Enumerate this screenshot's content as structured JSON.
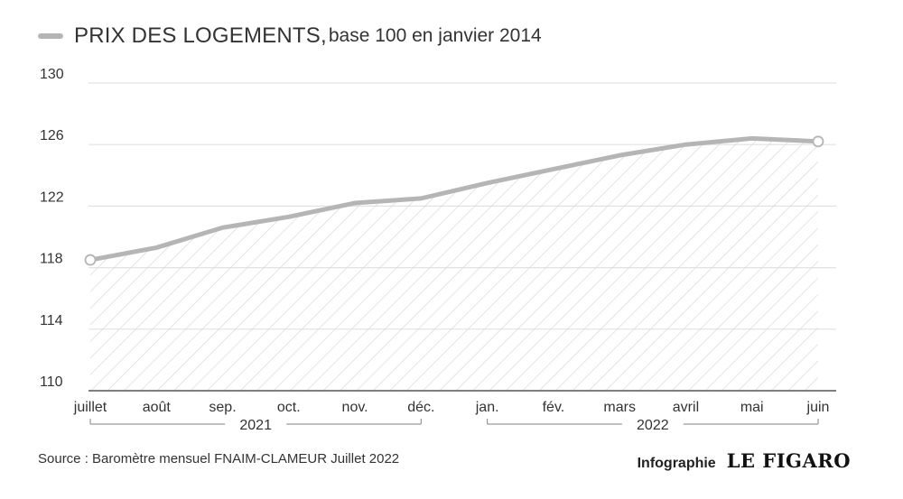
{
  "legend": {
    "title": "PRIX DES LOGEMENTS,",
    "subtitle": "base 100 en janvier 2014",
    "color": "#b5b5b5"
  },
  "footer": {
    "source": "Source : Baromètre mensuel FNAIM-CLAMEUR Juillet 2022",
    "credit_label": "Infographie",
    "credit_logo": "LE FIGARO"
  },
  "chart_data": {
    "type": "area",
    "categories": [
      "juillet",
      "août",
      "sep.",
      "oct.",
      "nov.",
      "déc.",
      "jan.",
      "fév.",
      "mars",
      "avril",
      "mai",
      "juin"
    ],
    "year_groups": [
      {
        "label": "2021",
        "from": 0,
        "to": 5
      },
      {
        "label": "2022",
        "from": 6,
        "to": 11
      }
    ],
    "series": [
      {
        "values": [
          118.5,
          119.3,
          120.6,
          121.3,
          122.2,
          122.5,
          123.5,
          124.4,
          125.3,
          126.0,
          126.4,
          126.2
        ]
      }
    ],
    "ylim": [
      110,
      130
    ],
    "yticks": [
      110,
      114,
      118,
      122,
      126,
      130
    ],
    "grid": true,
    "colors": {
      "line": "#b5b5b5",
      "grid": "#e2e2e2",
      "hatch": "#d6d6d6",
      "axis": "#555555"
    }
  }
}
